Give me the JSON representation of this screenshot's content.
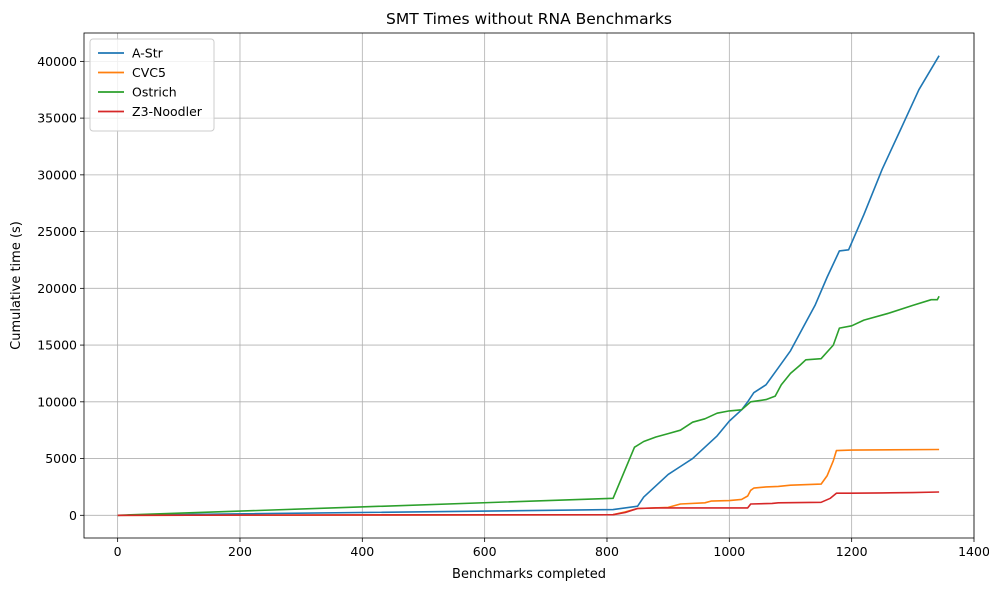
{
  "chart_data": {
    "type": "line",
    "title": "SMT Times without RNA Benchmarks",
    "xlabel": "Benchmarks completed",
    "ylabel": "Cumulative time (s)",
    "xlim": [
      -55,
      1400
    ],
    "ylim": [
      -2000,
      42500
    ],
    "xticks": [
      0,
      200,
      400,
      600,
      800,
      1000,
      1200,
      1400
    ],
    "yticks": [
      0,
      5000,
      10000,
      15000,
      20000,
      25000,
      30000,
      35000,
      40000
    ],
    "grid": true,
    "legend_position": "upper-left",
    "series": [
      {
        "name": "A-Str",
        "color": "#1f77b4",
        "points": [
          [
            0,
            0
          ],
          [
            810,
            500
          ],
          [
            850,
            800
          ],
          [
            860,
            1600
          ],
          [
            880,
            2600
          ],
          [
            900,
            3600
          ],
          [
            920,
            4300
          ],
          [
            940,
            5000
          ],
          [
            960,
            6000
          ],
          [
            980,
            7000
          ],
          [
            1000,
            8300
          ],
          [
            1020,
            9300
          ],
          [
            1030,
            10000
          ],
          [
            1040,
            10800
          ],
          [
            1060,
            11500
          ],
          [
            1080,
            13000
          ],
          [
            1100,
            14500
          ],
          [
            1120,
            16500
          ],
          [
            1140,
            18500
          ],
          [
            1160,
            21000
          ],
          [
            1180,
            23300
          ],
          [
            1195,
            23400
          ],
          [
            1220,
            26500
          ],
          [
            1250,
            30500
          ],
          [
            1280,
            34000
          ],
          [
            1310,
            37500
          ],
          [
            1343,
            40500
          ]
        ]
      },
      {
        "name": "CVC5",
        "color": "#ff7f0e",
        "points": [
          [
            0,
            0
          ],
          [
            810,
            50
          ],
          [
            830,
            300
          ],
          [
            850,
            600
          ],
          [
            900,
            700
          ],
          [
            920,
            1000
          ],
          [
            960,
            1100
          ],
          [
            970,
            1250
          ],
          [
            1000,
            1300
          ],
          [
            1020,
            1400
          ],
          [
            1030,
            1700
          ],
          [
            1035,
            2200
          ],
          [
            1040,
            2400
          ],
          [
            1060,
            2500
          ],
          [
            1080,
            2550
          ],
          [
            1100,
            2650
          ],
          [
            1150,
            2750
          ],
          [
            1160,
            3500
          ],
          [
            1170,
            4800
          ],
          [
            1175,
            5700
          ],
          [
            1200,
            5750
          ],
          [
            1343,
            5800
          ]
        ]
      },
      {
        "name": "Ostrich",
        "color": "#2ca02c",
        "points": [
          [
            0,
            0
          ],
          [
            810,
            1500
          ],
          [
            845,
            6000
          ],
          [
            860,
            6500
          ],
          [
            880,
            6900
          ],
          [
            900,
            7200
          ],
          [
            920,
            7500
          ],
          [
            940,
            8200
          ],
          [
            960,
            8500
          ],
          [
            980,
            9000
          ],
          [
            1000,
            9200
          ],
          [
            1020,
            9300
          ],
          [
            1035,
            10000
          ],
          [
            1060,
            10200
          ],
          [
            1075,
            10500
          ],
          [
            1085,
            11500
          ],
          [
            1100,
            12500
          ],
          [
            1115,
            13200
          ],
          [
            1125,
            13700
          ],
          [
            1150,
            13800
          ],
          [
            1170,
            15000
          ],
          [
            1180,
            16500
          ],
          [
            1200,
            16700
          ],
          [
            1220,
            17200
          ],
          [
            1260,
            17800
          ],
          [
            1300,
            18500
          ],
          [
            1330,
            19000
          ],
          [
            1340,
            19000
          ],
          [
            1343,
            19300
          ]
        ]
      },
      {
        "name": "Z3-Noodler",
        "color": "#d62728",
        "points": [
          [
            0,
            0
          ],
          [
            810,
            50
          ],
          [
            830,
            250
          ],
          [
            850,
            600
          ],
          [
            880,
            650
          ],
          [
            900,
            650
          ],
          [
            1000,
            650
          ],
          [
            1030,
            650
          ],
          [
            1035,
            1000
          ],
          [
            1070,
            1050
          ],
          [
            1080,
            1100
          ],
          [
            1150,
            1150
          ],
          [
            1165,
            1500
          ],
          [
            1175,
            1950
          ],
          [
            1200,
            1950
          ],
          [
            1250,
            1970
          ],
          [
            1300,
            2000
          ],
          [
            1343,
            2050
          ]
        ]
      }
    ]
  }
}
